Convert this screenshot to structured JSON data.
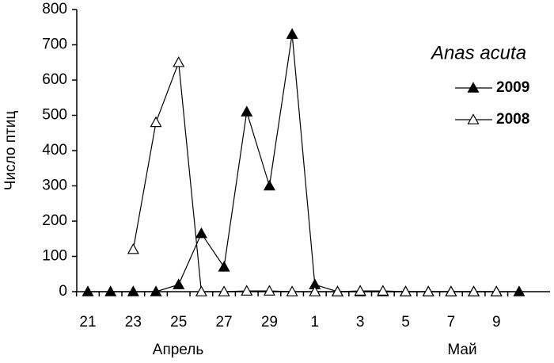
{
  "chart_data": {
    "type": "line",
    "ylabel": "Число птиц",
    "legend_title": "Anas acuta",
    "legend_position": "upper right",
    "categories": [
      "21",
      null,
      "23",
      null,
      "25",
      null,
      "27",
      null,
      "29",
      null,
      "1",
      null,
      "3",
      null,
      "5",
      null,
      "7",
      null,
      "9",
      null
    ],
    "month_labels": [
      "Апрель",
      "Май"
    ],
    "series": [
      {
        "name": "2009",
        "color": "#000000",
        "marker": "filled-triangle",
        "values": [
          0,
          0,
          0,
          0,
          20,
          165,
          70,
          510,
          300,
          730,
          20,
          0,
          0,
          0,
          0,
          0,
          0,
          0,
          0,
          0
        ]
      },
      {
        "name": "2008",
        "color": "#000000",
        "marker": "open-triangle",
        "values": [
          null,
          null,
          120,
          480,
          650,
          0,
          0,
          2,
          2,
          0,
          0,
          0,
          2,
          2,
          0,
          0,
          0,
          0,
          0,
          null
        ]
      }
    ],
    "ylim": [
      0,
      800
    ],
    "yticks": [
      0,
      100,
      200,
      300,
      400,
      500,
      600,
      700,
      800
    ]
  }
}
